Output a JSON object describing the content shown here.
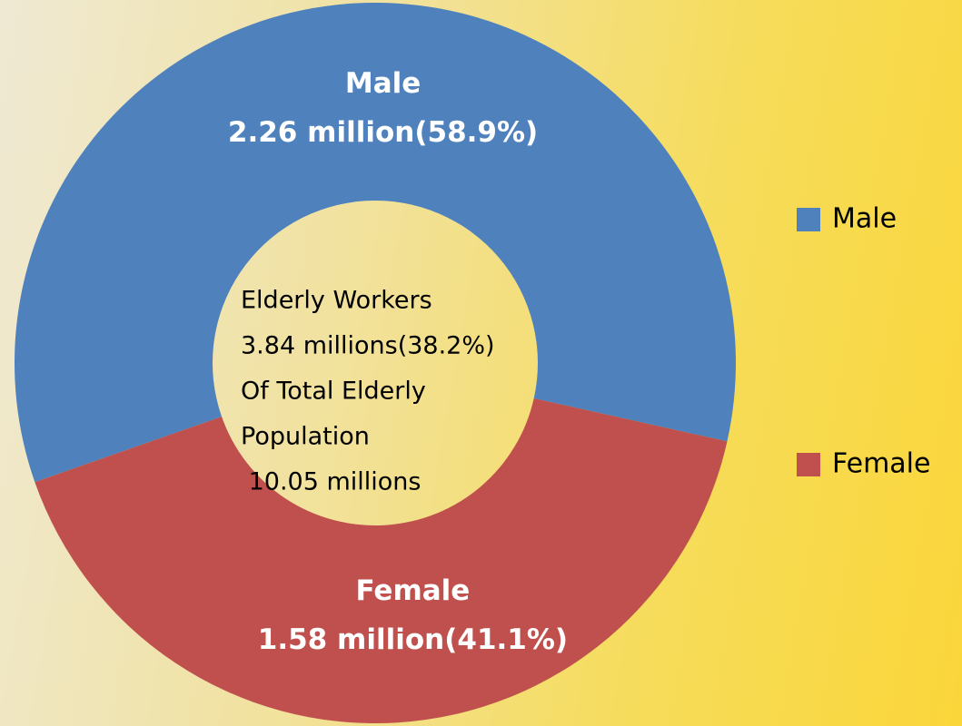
{
  "chart_data": {
    "type": "donut",
    "categories": [
      "Male",
      "Female"
    ],
    "values": [
      2.26,
      1.58
    ],
    "value_labels": [
      "2.26 million(58.9%)",
      "1.58 million(41.1%)"
    ],
    "colors": [
      "#4f81bd",
      "#c0504d"
    ],
    "center_text": [
      "Elderly Workers",
      "3.84 millions(38.2%)",
      "Of Total Elderly",
      "Population",
      " 10.05 millions"
    ],
    "legend": "right"
  }
}
